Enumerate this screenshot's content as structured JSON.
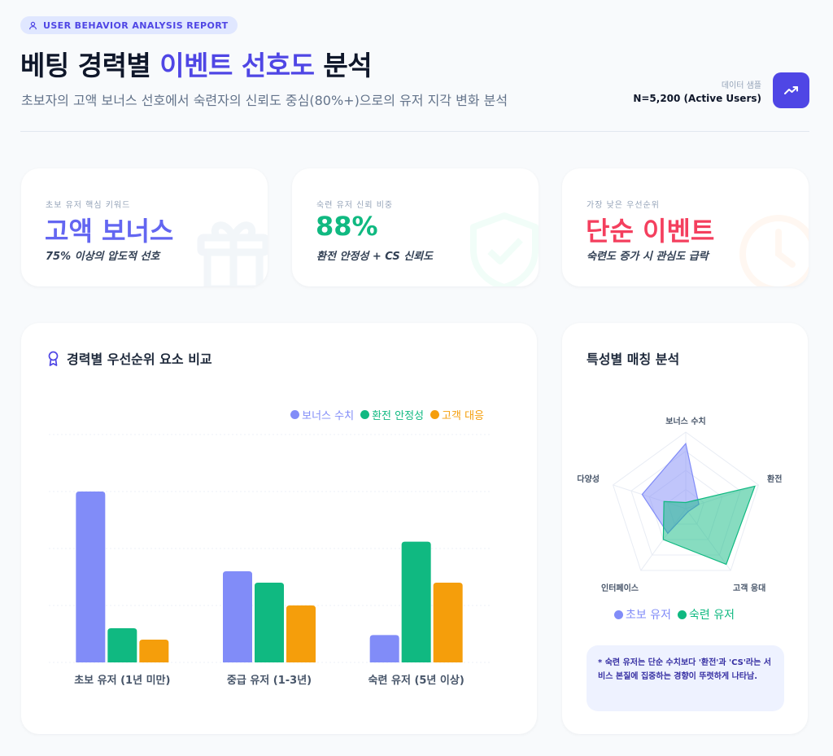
{
  "header": {
    "badge": "USER BEHAVIOR ANALYSIS REPORT",
    "title_part1": "베팅 경력별 ",
    "title_accent": "이벤트 선호도",
    "title_part2": " 분석",
    "subtitle": "초보자의 고액 보너스 선호에서 숙련자의 신뢰도 중심(80%+)으로의 유저 지각 변화 분석",
    "sample_label": "데이터 샘플",
    "sample_value": "N=5,200 (Active Users)"
  },
  "kpis": [
    {
      "label": "초보 유저 핵심 키워드",
      "value": "고액 보너스",
      "sub": "75% 이상의 압도적 선호",
      "color": "#6366f1",
      "icon": "gift-icon"
    },
    {
      "label": "숙련 유저 신뢰 비중",
      "value": "88%",
      "sub": "환전 안정성 + CS 신뢰도",
      "color": "#10b981",
      "icon": "shield-check-icon"
    },
    {
      "label": "가장 낮은 우선순위",
      "value": "단순 이벤트",
      "sub": "숙련도 증가 시 관심도 급락",
      "color": "#f43f5e",
      "icon": "clock-icon"
    }
  ],
  "bar_card": {
    "title": "경력별 우선순위 요소 비교"
  },
  "radar_card": {
    "title": "특성별 매칭 분석",
    "note": "* 숙련 유저는 단순 수치보다 '환전'과 'CS'라는 서비스 본질에 집중하는 경향이 뚜렷하게 나타남."
  },
  "chart_data": [
    {
      "type": "bar",
      "title": "경력별 우선순위 요소 비교",
      "categories": [
        "초보 유저 (1년 미만)",
        "중급 유저 (1-3년)",
        "숙련 유저 (5년 이상)"
      ],
      "series": [
        {
          "name": "보너스 수치",
          "color": "#818cf8",
          "values": [
            75,
            40,
            12
          ]
        },
        {
          "name": "환전 안정성",
          "color": "#10b981",
          "values": [
            15,
            35,
            53
          ]
        },
        {
          "name": "고객 대응",
          "color": "#f59e0b",
          "values": [
            10,
            25,
            35
          ]
        }
      ],
      "xlabel": "",
      "ylabel": "",
      "ylim": [
        0,
        100
      ],
      "y_ticks_visible": false,
      "grid": true,
      "legend_position": "top-right"
    },
    {
      "type": "radar",
      "title": "특성별 매칭 분석",
      "axes": [
        "보너스 수치",
        "환전",
        "고객 응대",
        "인터페이스",
        "다양성"
      ],
      "series": [
        {
          "name": "초보 유저",
          "color": "#818cf8",
          "values": [
            85,
            18,
            5,
            40,
            60
          ]
        },
        {
          "name": "숙련 유저",
          "color": "#10b981",
          "values": [
            8,
            95,
            90,
            50,
            30
          ]
        }
      ],
      "rlim": [
        0,
        100
      ],
      "legend_position": "bottom"
    }
  ]
}
